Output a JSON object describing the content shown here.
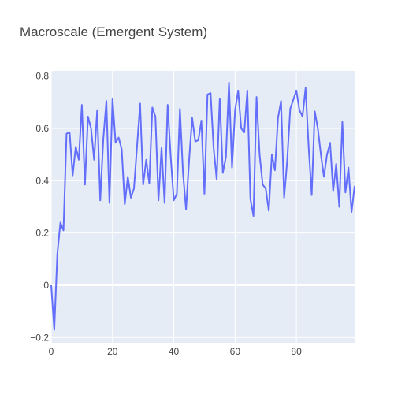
{
  "chart_data": {
    "type": "line",
    "title": "Macroscale (Emergent System)",
    "xlabel": "",
    "ylabel": "",
    "xlim": [
      0,
      99
    ],
    "ylim": [
      -0.22,
      0.82
    ],
    "x_ticks": [
      0,
      20,
      40,
      60,
      80
    ],
    "y_ticks": [
      -0.2,
      0,
      0.2,
      0.4,
      0.6,
      0.8
    ],
    "x_tick_labels": [
      "0",
      "20",
      "40",
      "60",
      "80"
    ],
    "y_tick_labels": [
      "−0.2",
      "0",
      "0.2",
      "0.4",
      "0.6",
      "0.8"
    ],
    "grid": true,
    "colors": {
      "plot_bg": "#e5ecf6",
      "grid": "#ffffff",
      "line": "#636efa",
      "text": "#444444"
    },
    "series": [
      {
        "x": [
          0,
          1,
          2,
          3,
          4,
          5,
          6,
          7,
          8,
          9,
          10,
          11,
          12,
          13,
          14,
          15,
          16,
          17,
          18,
          19,
          20,
          21,
          22,
          23,
          24,
          25,
          26,
          27,
          28,
          29,
          30,
          31,
          32,
          33,
          34,
          35,
          36,
          37,
          38,
          39,
          40,
          41,
          42,
          43,
          44,
          45,
          46,
          47,
          48,
          49,
          50,
          51,
          52,
          53,
          54,
          55,
          56,
          57,
          58,
          59,
          60,
          61,
          62,
          63,
          64,
          65,
          66,
          67,
          68,
          69,
          70,
          71,
          72,
          73,
          74,
          75,
          76,
          77,
          78,
          79,
          80,
          81,
          82,
          83,
          84,
          85,
          86,
          87,
          88,
          89,
          90,
          91,
          92,
          93,
          94,
          95,
          96,
          97,
          98,
          99
        ],
        "y": [
          0.0,
          -0.17,
          0.12,
          0.24,
          0.21,
          0.58,
          0.585,
          0.42,
          0.53,
          0.48,
          0.69,
          0.385,
          0.645,
          0.6,
          0.48,
          0.67,
          0.325,
          0.56,
          0.705,
          0.315,
          0.715,
          0.545,
          0.565,
          0.52,
          0.31,
          0.415,
          0.335,
          0.37,
          0.53,
          0.695,
          0.385,
          0.48,
          0.39,
          0.68,
          0.645,
          0.325,
          0.525,
          0.315,
          0.69,
          0.49,
          0.325,
          0.35,
          0.675,
          0.43,
          0.29,
          0.48,
          0.64,
          0.55,
          0.555,
          0.63,
          0.35,
          0.73,
          0.735,
          0.525,
          0.405,
          0.715,
          0.43,
          0.49,
          0.775,
          0.45,
          0.67,
          0.745,
          0.6,
          0.585,
          0.745,
          0.33,
          0.265,
          0.72,
          0.5,
          0.385,
          0.37,
          0.285,
          0.5,
          0.44,
          0.64,
          0.705,
          0.335,
          0.475,
          0.675,
          0.71,
          0.745,
          0.67,
          0.645,
          0.755,
          0.53,
          0.345,
          0.665,
          0.6,
          0.5,
          0.415,
          0.5,
          0.545,
          0.36,
          0.465,
          0.3,
          0.625,
          0.355,
          0.45,
          0.28,
          0.38
        ]
      }
    ]
  }
}
